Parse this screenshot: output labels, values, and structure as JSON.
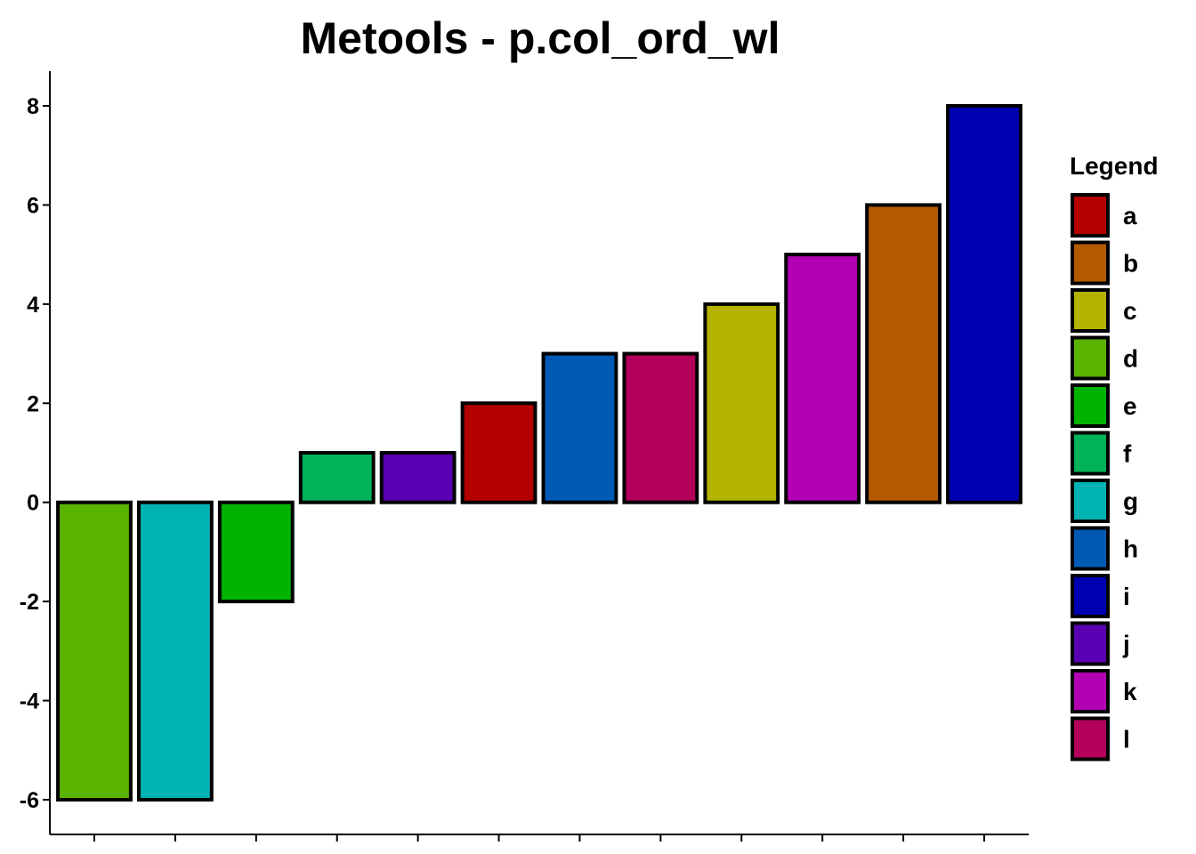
{
  "chart_data": {
    "type": "bar",
    "title": "Metools - p.col_ord_wl",
    "xlabel": "",
    "ylabel": "",
    "ylim": [
      -6.7,
      8.7
    ],
    "yticks": [
      -6,
      -4,
      -2,
      0,
      2,
      4,
      6,
      8
    ],
    "grid": false,
    "legend": {
      "title": "Legend",
      "placement": "right",
      "entries": [
        {
          "label": "a",
          "color": "#B30000"
        },
        {
          "label": "b",
          "color": "#B35A00"
        },
        {
          "label": "c",
          "color": "#B3B300"
        },
        {
          "label": "d",
          "color": "#5AB300"
        },
        {
          "label": "e",
          "color": "#00B300"
        },
        {
          "label": "f",
          "color": "#00B35A"
        },
        {
          "label": "g",
          "color": "#00B3B3"
        },
        {
          "label": "h",
          "color": "#005AB3"
        },
        {
          "label": "i",
          "color": "#0000B3"
        },
        {
          "label": "j",
          "color": "#5A00B3"
        },
        {
          "label": "k",
          "color": "#B300B3"
        },
        {
          "label": "l",
          "color": "#B3005A"
        }
      ]
    },
    "categories": [
      "d",
      "g",
      "e",
      "f",
      "j",
      "a",
      "h",
      "l",
      "c",
      "k",
      "b",
      "i"
    ],
    "values": [
      -6,
      -6,
      -2,
      1,
      1,
      2,
      3,
      3,
      4,
      5,
      6,
      8
    ]
  }
}
